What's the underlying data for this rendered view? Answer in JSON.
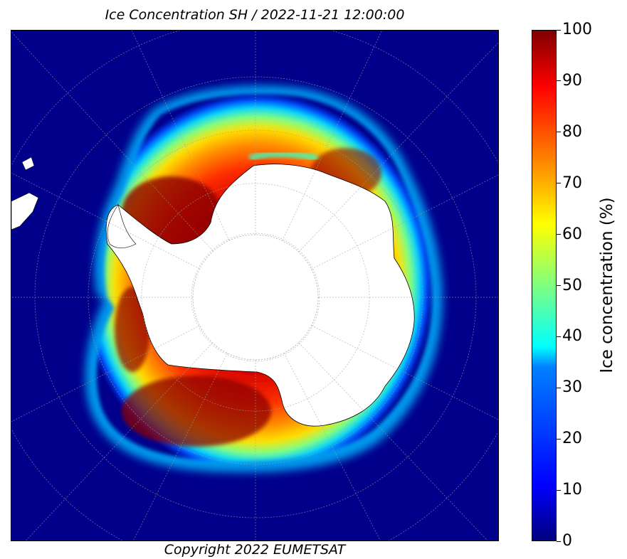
{
  "map": {
    "title": "Ice Concentration SH / 2022-11-21 12:00:00",
    "copyright": "Copyright 2022 EUMETSAT",
    "projection": "south-polar-stereographic",
    "region": "Antarctica / Southern Ocean",
    "gridlines": "dashed-gray",
    "background_color": "#00008b",
    "land_color": "#ffffff"
  },
  "colorbar": {
    "label": "Ice concentration (%)",
    "ticks": [
      "0",
      "10",
      "20",
      "30",
      "40",
      "50",
      "60",
      "70",
      "80",
      "90",
      "100"
    ],
    "min": 0,
    "max": 100,
    "colormap": "jet",
    "colors": {
      "low": "#00007f",
      "mid": "#7fff7f",
      "high": "#7f0000"
    }
  }
}
